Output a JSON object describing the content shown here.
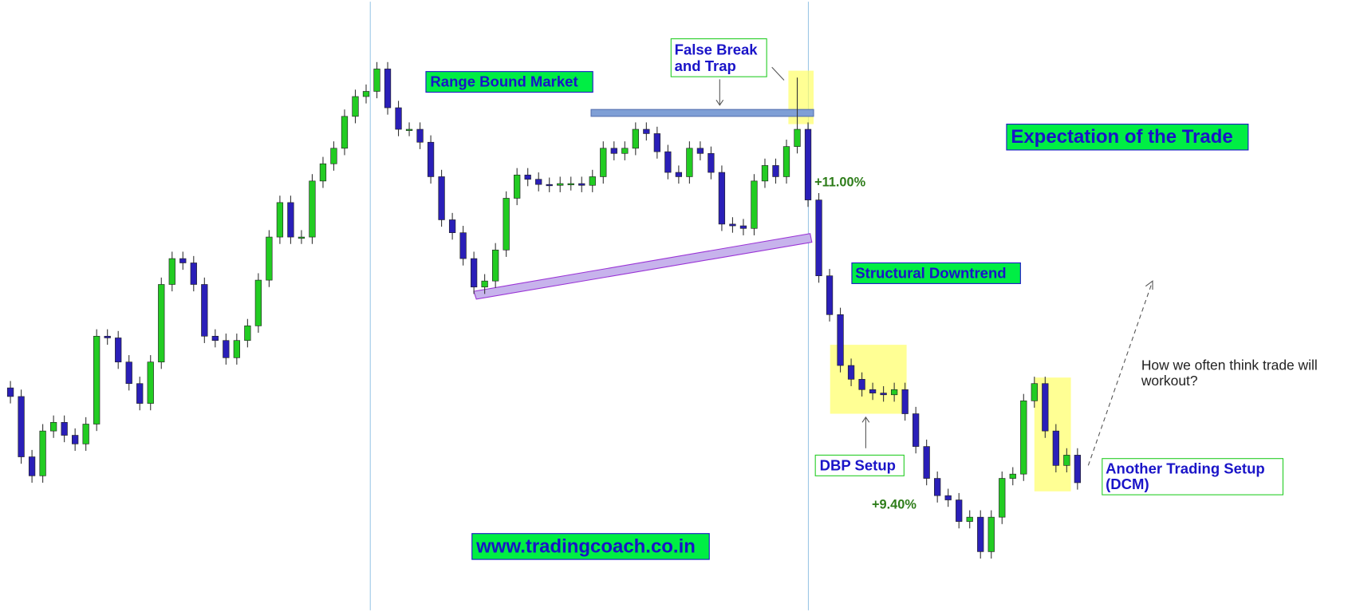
{
  "chart_data": {
    "type": "candlestick",
    "up_color": "#22cc22",
    "down_color": "#2a1fb8",
    "ylim": [
      0,
      710
    ],
    "open": [
      260,
      250,
      180,
      158,
      210,
      220,
      205,
      195,
      218,
      320,
      318,
      290,
      265,
      242,
      290,
      380,
      410,
      405,
      380,
      320,
      315,
      295,
      315,
      332,
      385,
      435,
      475,
      435,
      435,
      500,
      520,
      538,
      575,
      598,
      604,
      630,
      585,
      560,
      560,
      545,
      505,
      455,
      440,
      410,
      377,
      384,
      420,
      480,
      507,
      502,
      496,
      495,
      497,
      497,
      495,
      505,
      538,
      532,
      538,
      560,
      555,
      534,
      510,
      505,
      538,
      532,
      510,
      450,
      448,
      445,
      500,
      518,
      505,
      540,
      560,
      478,
      390,
      345,
      286,
      270,
      258,
      254,
      252,
      258,
      230,
      192,
      155,
      135,
      130,
      105,
      110,
      70,
      110,
      155,
      160,
      245,
      265,
      210,
      170,
      182
    ],
    "high": [
      268,
      258,
      188,
      218,
      228,
      228,
      213,
      226,
      328,
      328,
      326,
      298,
      273,
      298,
      388,
      418,
      418,
      413,
      388,
      328,
      323,
      323,
      340,
      393,
      443,
      483,
      483,
      443,
      508,
      528,
      546,
      583,
      606,
      612,
      638,
      638,
      593,
      568,
      568,
      553,
      513,
      463,
      448,
      418,
      392,
      428,
      488,
      515,
      515,
      510,
      504,
      505,
      505,
      505,
      513,
      546,
      546,
      546,
      568,
      568,
      563,
      542,
      518,
      546,
      546,
      540,
      518,
      458,
      456,
      508,
      526,
      526,
      548,
      620,
      568,
      486,
      398,
      353,
      294,
      278,
      266,
      262,
      266,
      266,
      238,
      200,
      163,
      143,
      138,
      118,
      118,
      118,
      163,
      168,
      253,
      273,
      273,
      218,
      190,
      190
    ],
    "low": [
      242,
      172,
      150,
      150,
      202,
      197,
      187,
      187,
      210,
      310,
      282,
      257,
      234,
      234,
      282,
      372,
      397,
      372,
      312,
      307,
      287,
      287,
      307,
      324,
      377,
      427,
      427,
      427,
      427,
      492,
      512,
      530,
      567,
      590,
      596,
      577,
      552,
      552,
      537,
      497,
      447,
      432,
      402,
      369,
      369,
      376,
      412,
      472,
      494,
      488,
      487,
      487,
      489,
      487,
      487,
      497,
      524,
      524,
      530,
      547,
      526,
      502,
      497,
      497,
      524,
      502,
      442,
      440,
      437,
      437,
      492,
      497,
      497,
      532,
      470,
      382,
      337,
      278,
      262,
      250,
      246,
      244,
      244,
      222,
      184,
      147,
      127,
      122,
      97,
      97,
      62,
      62,
      102,
      147,
      152,
      237,
      202,
      162,
      162,
      142
    ],
    "close": [
      250,
      180,
      158,
      210,
      220,
      205,
      195,
      218,
      320,
      318,
      290,
      265,
      242,
      290,
      380,
      410,
      405,
      380,
      320,
      315,
      295,
      315,
      332,
      385,
      435,
      475,
      435,
      435,
      500,
      520,
      538,
      575,
      598,
      604,
      630,
      585,
      560,
      560,
      545,
      505,
      455,
      440,
      410,
      377,
      384,
      420,
      480,
      507,
      502,
      496,
      495,
      497,
      497,
      495,
      505,
      538,
      532,
      538,
      560,
      555,
      534,
      510,
      505,
      538,
      532,
      510,
      450,
      448,
      445,
      500,
      518,
      505,
      540,
      560,
      478,
      390,
      345,
      286,
      270,
      258,
      254,
      252,
      258,
      230,
      192,
      155,
      135,
      130,
      105,
      110,
      70,
      110,
      155,
      160,
      245,
      265,
      210,
      170,
      182,
      150
    ],
    "annotations": [
      [
        "Range Bound Market"
      ],
      [
        "False Break",
        "and Trap"
      ],
      [
        "+11.00%"
      ],
      [
        "Expectation of the Trade"
      ],
      [
        "Structural Downtrend"
      ],
      [
        "DBP Setup"
      ],
      [
        "+9.40%"
      ],
      [
        "How we often think trade will",
        "workout?"
      ],
      [
        "Another Trading Setup",
        "(DCM)"
      ],
      [
        "www.tradingcoach.co.in"
      ]
    ]
  }
}
